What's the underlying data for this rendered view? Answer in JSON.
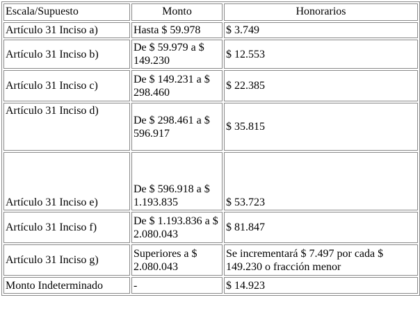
{
  "table": {
    "header": [
      "Escala/Supuesto",
      "Monto",
      "Honorarios"
    ],
    "rows": [
      [
        "Artículo 31 Inciso a)",
        "Hasta $ 59.978",
        "$ 3.749"
      ],
      [
        "Artículo 31 Inciso b)",
        "De $ 59.979 a $ 149.230",
        "$ 12.553"
      ],
      [
        "Artículo 31 Inciso c)",
        "De $ 149.231 a $ 298.460",
        "$ 22.385"
      ],
      [
        "Artículo 31 Inciso d)",
        "De $ 298.461 a $ 596.917",
        "$ 35.815"
      ],
      [
        "Artículo 31 Inciso e)",
        "De $ 596.918 a $ 1.193.835",
        "$ 53.723"
      ],
      [
        "Artículo 31 Inciso f)",
        "De $ 1.193.836 a $ 2.080.043",
        "$ 81.847"
      ],
      [
        "Artículo 31 Inciso g)",
        "Superiores a $ 2.080.043",
        "Se incrementará $ 7.497 por cada $ 149.230 o fracción menor"
      ],
      [
        "Monto Indeterminado",
        "-",
        "$ 14.923"
      ]
    ]
  }
}
